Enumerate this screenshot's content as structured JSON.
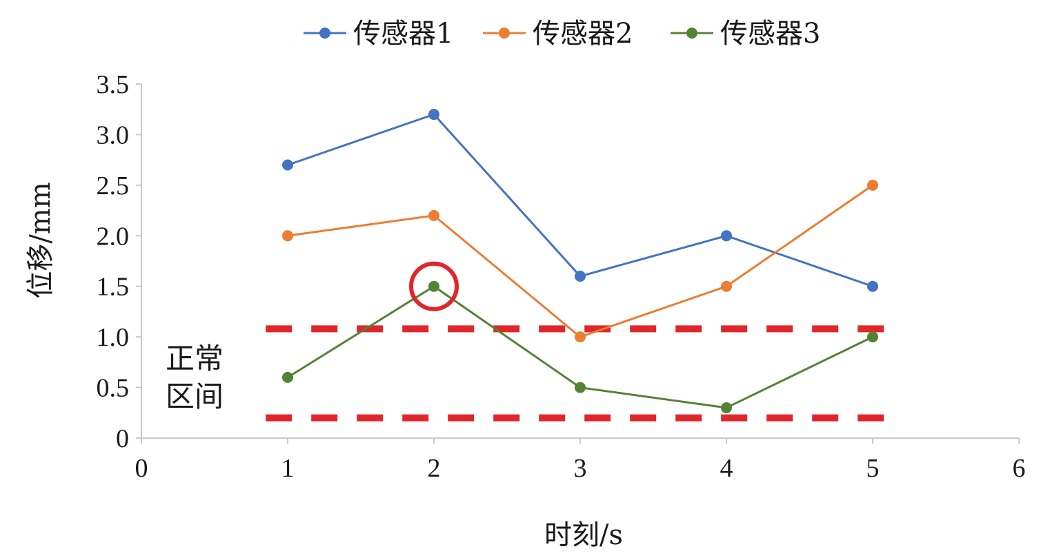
{
  "chart_data": {
    "type": "line",
    "title": "",
    "xlabel": "时刻/s",
    "ylabel": "位移/mm",
    "xlim": [
      0,
      6
    ],
    "ylim": [
      0,
      3.5
    ],
    "x_ticks": [
      "0",
      "1",
      "2",
      "3",
      "4",
      "5",
      "6"
    ],
    "y_ticks": [
      "0",
      "0.5",
      "1.0",
      "1.5",
      "2.0",
      "2.5",
      "3.0",
      "3.5"
    ],
    "x": [
      1,
      2,
      3,
      4,
      5
    ],
    "series": [
      {
        "name": "传感器1",
        "color": "#4472c4",
        "values": [
          2.7,
          3.2,
          1.6,
          2.0,
          1.5
        ]
      },
      {
        "name": "传感器2",
        "color": "#ed7d31",
        "values": [
          2.0,
          2.2,
          1.0,
          1.5,
          2.5
        ]
      },
      {
        "name": "传感器3",
        "color": "#548235",
        "values": [
          0.6,
          1.5,
          0.5,
          0.3,
          1.0
        ]
      }
    ],
    "legend_position": "top",
    "grid": false,
    "normal_band": {
      "label_line1": "正常",
      "label_line2": "区间",
      "lower": 0.2,
      "upper": 1.08,
      "x_start": 0.85,
      "x_end": 5.2,
      "color": "#e0262b"
    },
    "highlight": {
      "series": "传感器3",
      "x": 2,
      "y": 1.5,
      "color": "#e0262b"
    }
  }
}
